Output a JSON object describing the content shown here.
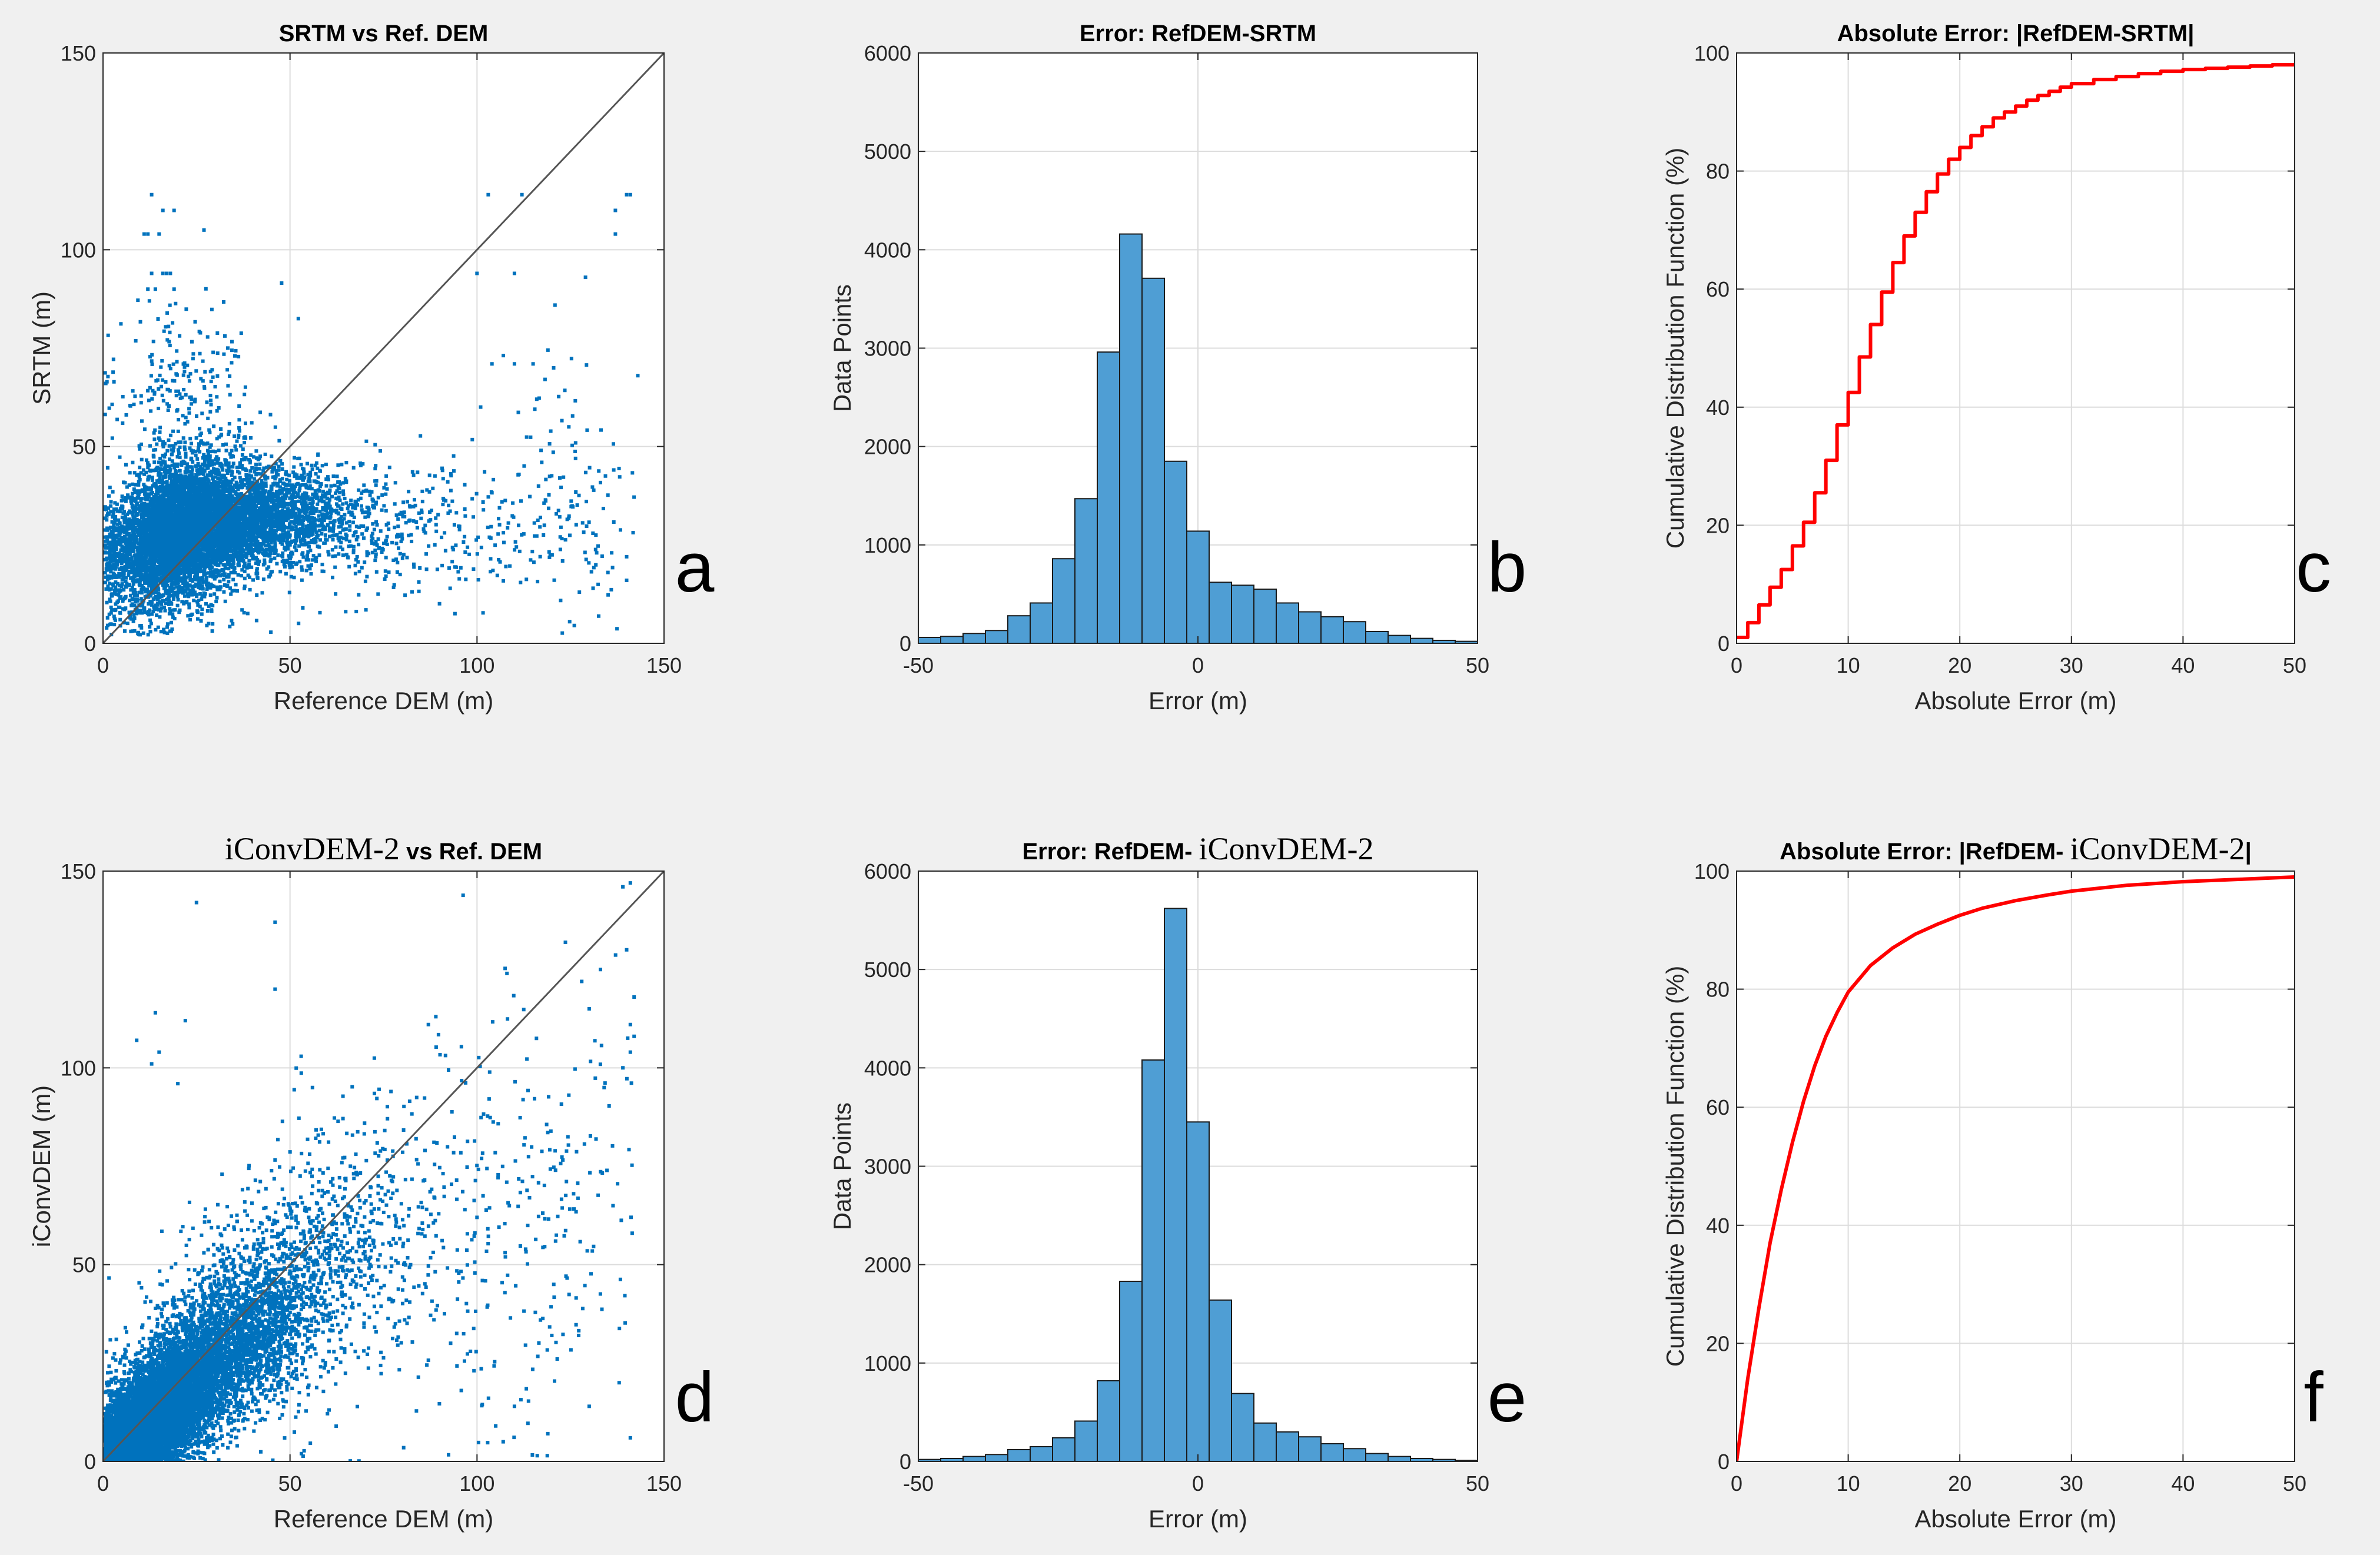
{
  "colors": {
    "scatter": "#0072BD",
    "bar": "#4F9ED4",
    "bar_edge": "#1a1a1a",
    "cdf": "#FF0000",
    "grid": "#dcdcdc",
    "frame": "#262626",
    "identity": "#555555"
  },
  "chart_data": [
    {
      "id": "a",
      "type": "scatter",
      "title": "SRTM vs Ref. DEM",
      "title_parts": [
        {
          "text": "SRTM vs Ref. DEM",
          "serif": false
        }
      ],
      "xlabel": "Reference DEM (m)",
      "ylabel": "SRTM (m)",
      "xlim": [
        0,
        150
      ],
      "ylim": [
        0,
        150
      ],
      "xticks": [
        0,
        50,
        100,
        150
      ],
      "yticks": [
        0,
        50,
        100,
        150
      ],
      "grid": true,
      "panel_label": "a",
      "identity_line": true,
      "clusters": [
        {
          "n": 5200,
          "cx": 20,
          "cy": 28,
          "sx": 9,
          "sy": 9,
          "corr": 0.25,
          "ymin": 2
        },
        {
          "n": 2200,
          "cx": 42,
          "cy": 32,
          "sx": 12,
          "sy": 6,
          "corr": 0.2,
          "ymin": 2
        },
        {
          "n": 500,
          "cx": 75,
          "cy": 28,
          "sx": 25,
          "sy": 9,
          "corr": 0.1,
          "ymin": 2
        },
        {
          "n": 250,
          "cx": 20,
          "cy": 62,
          "sx": 10,
          "sy": 12,
          "corr": 0.0,
          "ymin": 2
        },
        {
          "n": 120,
          "cx": 125,
          "cy": 38,
          "sx": 12,
          "sy": 18,
          "corr": 0.0,
          "ymin": 2
        }
      ],
      "extra_points": [
        [
          13,
          114
        ],
        [
          16,
          110
        ],
        [
          19,
          110
        ],
        [
          27,
          105
        ],
        [
          15,
          104
        ],
        [
          12,
          104
        ],
        [
          11,
          104
        ],
        [
          16,
          94
        ],
        [
          13,
          94
        ],
        [
          18,
          94
        ],
        [
          17,
          94
        ],
        [
          12,
          90
        ],
        [
          14,
          90
        ],
        [
          19,
          90
        ],
        [
          103,
          114
        ],
        [
          112,
          114
        ],
        [
          100,
          94
        ],
        [
          110,
          94
        ],
        [
          129,
          93
        ],
        [
          137,
          110
        ],
        [
          141,
          114
        ],
        [
          140,
          114
        ],
        [
          137,
          104
        ],
        [
          104,
          71
        ],
        [
          110,
          71
        ],
        [
          115,
          71
        ],
        [
          143,
          68
        ],
        [
          132,
          23
        ],
        [
          136,
          23
        ],
        [
          140,
          22
        ],
        [
          118,
          30
        ],
        [
          135,
          18
        ],
        [
          140,
          16
        ]
      ]
    },
    {
      "id": "b",
      "type": "bar",
      "title": "Error: RefDEM-SRTM",
      "title_parts": [
        {
          "text": "Error: RefDEM-SRTM",
          "serif": false
        }
      ],
      "xlabel": "Error (m)",
      "ylabel": "Data Points",
      "xlim": [
        -50,
        50
      ],
      "ylim": [
        0,
        6000
      ],
      "xticks": [
        -50,
        0,
        50
      ],
      "yticks": [
        0,
        1000,
        2000,
        3000,
        4000,
        5000,
        6000
      ],
      "grid": true,
      "panel_label": "b",
      "bin_start": -50,
      "bin_width": 4,
      "values": [
        60,
        70,
        100,
        130,
        280,
        410,
        860,
        1470,
        2960,
        4160,
        3710,
        1850,
        1140,
        620,
        590,
        550,
        410,
        320,
        270,
        220,
        120,
        80,
        50,
        30,
        20
      ]
    },
    {
      "id": "c",
      "type": "line",
      "title": "Absolute Error: |RefDEM-SRTM|",
      "title_parts": [
        {
          "text": "Absolute Error: |RefDEM-SRTM|",
          "serif": false
        }
      ],
      "xlabel": "Absolute Error (m)",
      "ylabel": "Cumulative Distribution Function (%)",
      "xlim": [
        0,
        50
      ],
      "ylim": [
        0,
        100
      ],
      "xticks": [
        0,
        10,
        20,
        30,
        40,
        50
      ],
      "yticks": [
        0,
        20,
        40,
        60,
        80,
        100
      ],
      "grid": true,
      "panel_label": "c",
      "step": true,
      "x": [
        0,
        1,
        2,
        3,
        4,
        5,
        6,
        7,
        8,
        9,
        10,
        11,
        12,
        13,
        14,
        15,
        16,
        17,
        18,
        19,
        20,
        21,
        22,
        23,
        24,
        25,
        26,
        27,
        28,
        29,
        30,
        32,
        34,
        36,
        38,
        40,
        42,
        44,
        46,
        48,
        50
      ],
      "y": [
        1,
        3.5,
        6.5,
        9.5,
        12.5,
        16.5,
        20.5,
        25.5,
        31,
        37,
        42.5,
        48.5,
        54,
        59.5,
        64.5,
        69,
        73,
        76.5,
        79.5,
        82,
        84,
        86,
        87.5,
        89,
        90,
        91,
        92,
        92.8,
        93.5,
        94.2,
        94.8,
        95.5,
        96,
        96.5,
        96.9,
        97.2,
        97.4,
        97.6,
        97.8,
        98,
        98.1
      ]
    },
    {
      "id": "d",
      "type": "scatter",
      "title": "iConvDEM-2 vs Ref. DEM",
      "title_parts": [
        {
          "text": "iConvDEM-2",
          "serif": true
        },
        {
          "text": " vs Ref. DEM",
          "serif": false
        }
      ],
      "xlabel": "Reference DEM (m)",
      "ylabel": "iConvDEM (m)",
      "xlim": [
        0,
        150
      ],
      "ylim": [
        0,
        150
      ],
      "xticks": [
        0,
        50,
        100,
        150
      ],
      "yticks": [
        0,
        50,
        100,
        150
      ],
      "grid": true,
      "panel_label": "d",
      "identity_line": true,
      "clusters": [
        {
          "n": 6000,
          "cx": 14,
          "cy": 12,
          "sx": 8,
          "sy": 8,
          "corr": 0.55,
          "ymin": 0
        },
        {
          "n": 3000,
          "cx": 32,
          "cy": 28,
          "sx": 13,
          "sy": 12,
          "corr": 0.55,
          "ymin": 0
        },
        {
          "n": 900,
          "cx": 55,
          "cy": 48,
          "sx": 18,
          "sy": 18,
          "corr": 0.4,
          "ymin": 0
        },
        {
          "n": 350,
          "cx": 110,
          "cy": 60,
          "sx": 25,
          "sy": 30,
          "corr": 0.2,
          "ymin": 0
        }
      ],
      "extra_points": [
        [
          25,
          142
        ],
        [
          46,
          137
        ],
        [
          46,
          120
        ],
        [
          14,
          114
        ],
        [
          22,
          112
        ],
        [
          13,
          101
        ],
        [
          15,
          104
        ],
        [
          9,
          107
        ],
        [
          20,
          96
        ],
        [
          56,
          95
        ],
        [
          77,
          94
        ],
        [
          89,
          113
        ],
        [
          87,
          111
        ],
        [
          108,
          124
        ],
        [
          133,
          125
        ],
        [
          139,
          146
        ],
        [
          141,
          147
        ],
        [
          140,
          130
        ],
        [
          142,
          118
        ],
        [
          141,
          111
        ],
        [
          142,
          108
        ],
        [
          141,
          104
        ],
        [
          130,
          115
        ],
        [
          134,
          95
        ],
        [
          139,
          100
        ],
        [
          100,
          62
        ],
        [
          120,
          32
        ],
        [
          110,
          14
        ],
        [
          130,
          14
        ],
        [
          138,
          20
        ],
        [
          141,
          6
        ],
        [
          107,
          5
        ],
        [
          105,
          9
        ]
      ]
    },
    {
      "id": "e",
      "type": "bar",
      "title": "Error: RefDEM- iConvDEM-2",
      "title_parts": [
        {
          "text": "Error: RefDEM- ",
          "serif": false
        },
        {
          "text": "iConvDEM-2",
          "serif": true
        }
      ],
      "xlabel": "Error (m)",
      "ylabel": "Data Points",
      "xlim": [
        -50,
        50
      ],
      "ylim": [
        0,
        6000
      ],
      "xticks": [
        -50,
        0,
        50
      ],
      "yticks": [
        0,
        1000,
        2000,
        3000,
        4000,
        5000,
        6000
      ],
      "grid": true,
      "panel_label": "e",
      "bin_start": -50,
      "bin_width": 4,
      "values": [
        20,
        30,
        50,
        70,
        120,
        150,
        240,
        410,
        820,
        1830,
        4080,
        5620,
        3450,
        1640,
        690,
        390,
        300,
        250,
        180,
        130,
        80,
        50,
        30,
        20,
        10
      ]
    },
    {
      "id": "f",
      "type": "line",
      "title": "Absolute Error: |RefDEM- iConvDEM-2|",
      "title_parts": [
        {
          "text": "Absolute Error: |RefDEM- ",
          "serif": false
        },
        {
          "text": "iConvDEM-2",
          "serif": true
        },
        {
          "text": "|",
          "serif": false
        }
      ],
      "xlabel": "Absolute Error (m)",
      "ylabel": "Cumulative Distribution Function (%)",
      "xlim": [
        0,
        50
      ],
      "ylim": [
        0,
        100
      ],
      "xticks": [
        0,
        10,
        20,
        30,
        40,
        50
      ],
      "yticks": [
        0,
        20,
        40,
        60,
        80,
        100
      ],
      "grid": true,
      "panel_label": "f",
      "step": false,
      "x": [
        0,
        1,
        2,
        3,
        4,
        5,
        6,
        7,
        8,
        9,
        10,
        12,
        14,
        16,
        18,
        20,
        22,
        25,
        28,
        30,
        35,
        40,
        45,
        50
      ],
      "y": [
        0,
        14,
        26,
        37,
        46,
        54,
        61,
        67,
        72,
        76,
        79.5,
        84,
        87,
        89.3,
        91,
        92.5,
        93.7,
        95,
        96,
        96.6,
        97.6,
        98.2,
        98.6,
        99
      ]
    }
  ]
}
